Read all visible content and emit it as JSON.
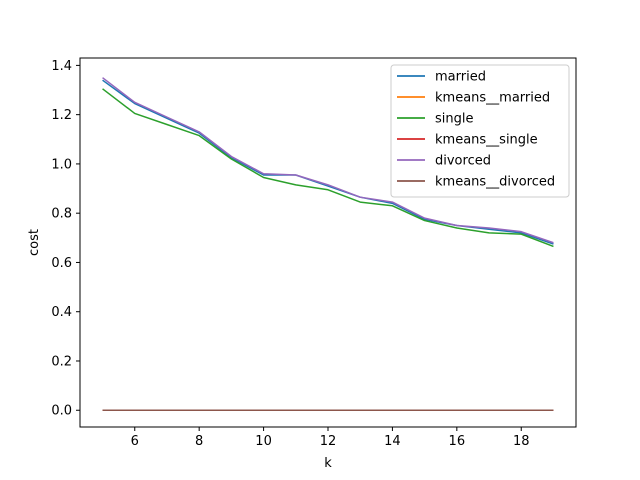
{
  "chart_data": {
    "type": "line",
    "title": "",
    "xlabel": "k",
    "ylabel": "cost",
    "xlim": [
      4.3,
      19.7
    ],
    "ylim": [
      -0.068,
      1.43
    ],
    "xticks": [
      6,
      8,
      10,
      12,
      14,
      16,
      18
    ],
    "xtick_labels": [
      "6",
      "8",
      "10",
      "12",
      "14",
      "16",
      "18"
    ],
    "yticks": [
      0.0,
      0.2,
      0.4,
      0.6,
      0.8,
      1.0,
      1.2,
      1.4
    ],
    "ytick_labels": [
      "0.0",
      "0.2",
      "0.4",
      "0.6",
      "0.8",
      "1.0",
      "1.2",
      "1.4"
    ],
    "grid": false,
    "legend_position": "top-right",
    "x": [
      5,
      6,
      7,
      8,
      9,
      10,
      11,
      12,
      13,
      14,
      15,
      16,
      17,
      18,
      19
    ],
    "series": [
      {
        "name": "married",
        "color": "#1f77b4",
        "values": [
          1.34,
          1.245,
          1.185,
          1.125,
          1.025,
          0.955,
          0.955,
          0.91,
          0.865,
          0.84,
          0.775,
          0.75,
          0.735,
          0.72,
          0.675
        ]
      },
      {
        "name": "kmeans__married",
        "color": "#ff7f0e",
        "values": [
          0,
          0,
          0,
          0,
          0,
          0,
          0,
          0,
          0,
          0,
          0,
          0,
          0,
          0,
          0
        ]
      },
      {
        "name": "single",
        "color": "#2ca02c",
        "values": [
          1.305,
          1.205,
          1.16,
          1.115,
          1.02,
          0.945,
          0.915,
          0.895,
          0.845,
          0.83,
          0.77,
          0.74,
          0.72,
          0.715,
          0.665
        ]
      },
      {
        "name": "kmeans__single",
        "color": "#d62728",
        "values": [
          0,
          0,
          0,
          0,
          0,
          0,
          0,
          0,
          0,
          0,
          0,
          0,
          0,
          0,
          0
        ]
      },
      {
        "name": "divorced",
        "color": "#9467bd",
        "values": [
          1.35,
          1.25,
          1.19,
          1.13,
          1.03,
          0.96,
          0.955,
          0.915,
          0.865,
          0.845,
          0.78,
          0.75,
          0.74,
          0.725,
          0.68
        ]
      },
      {
        "name": "kmeans__divorced",
        "color": "#8c564b",
        "values": [
          0,
          0,
          0,
          0,
          0,
          0,
          0,
          0,
          0,
          0,
          0,
          0,
          0,
          0,
          0
        ]
      }
    ]
  }
}
